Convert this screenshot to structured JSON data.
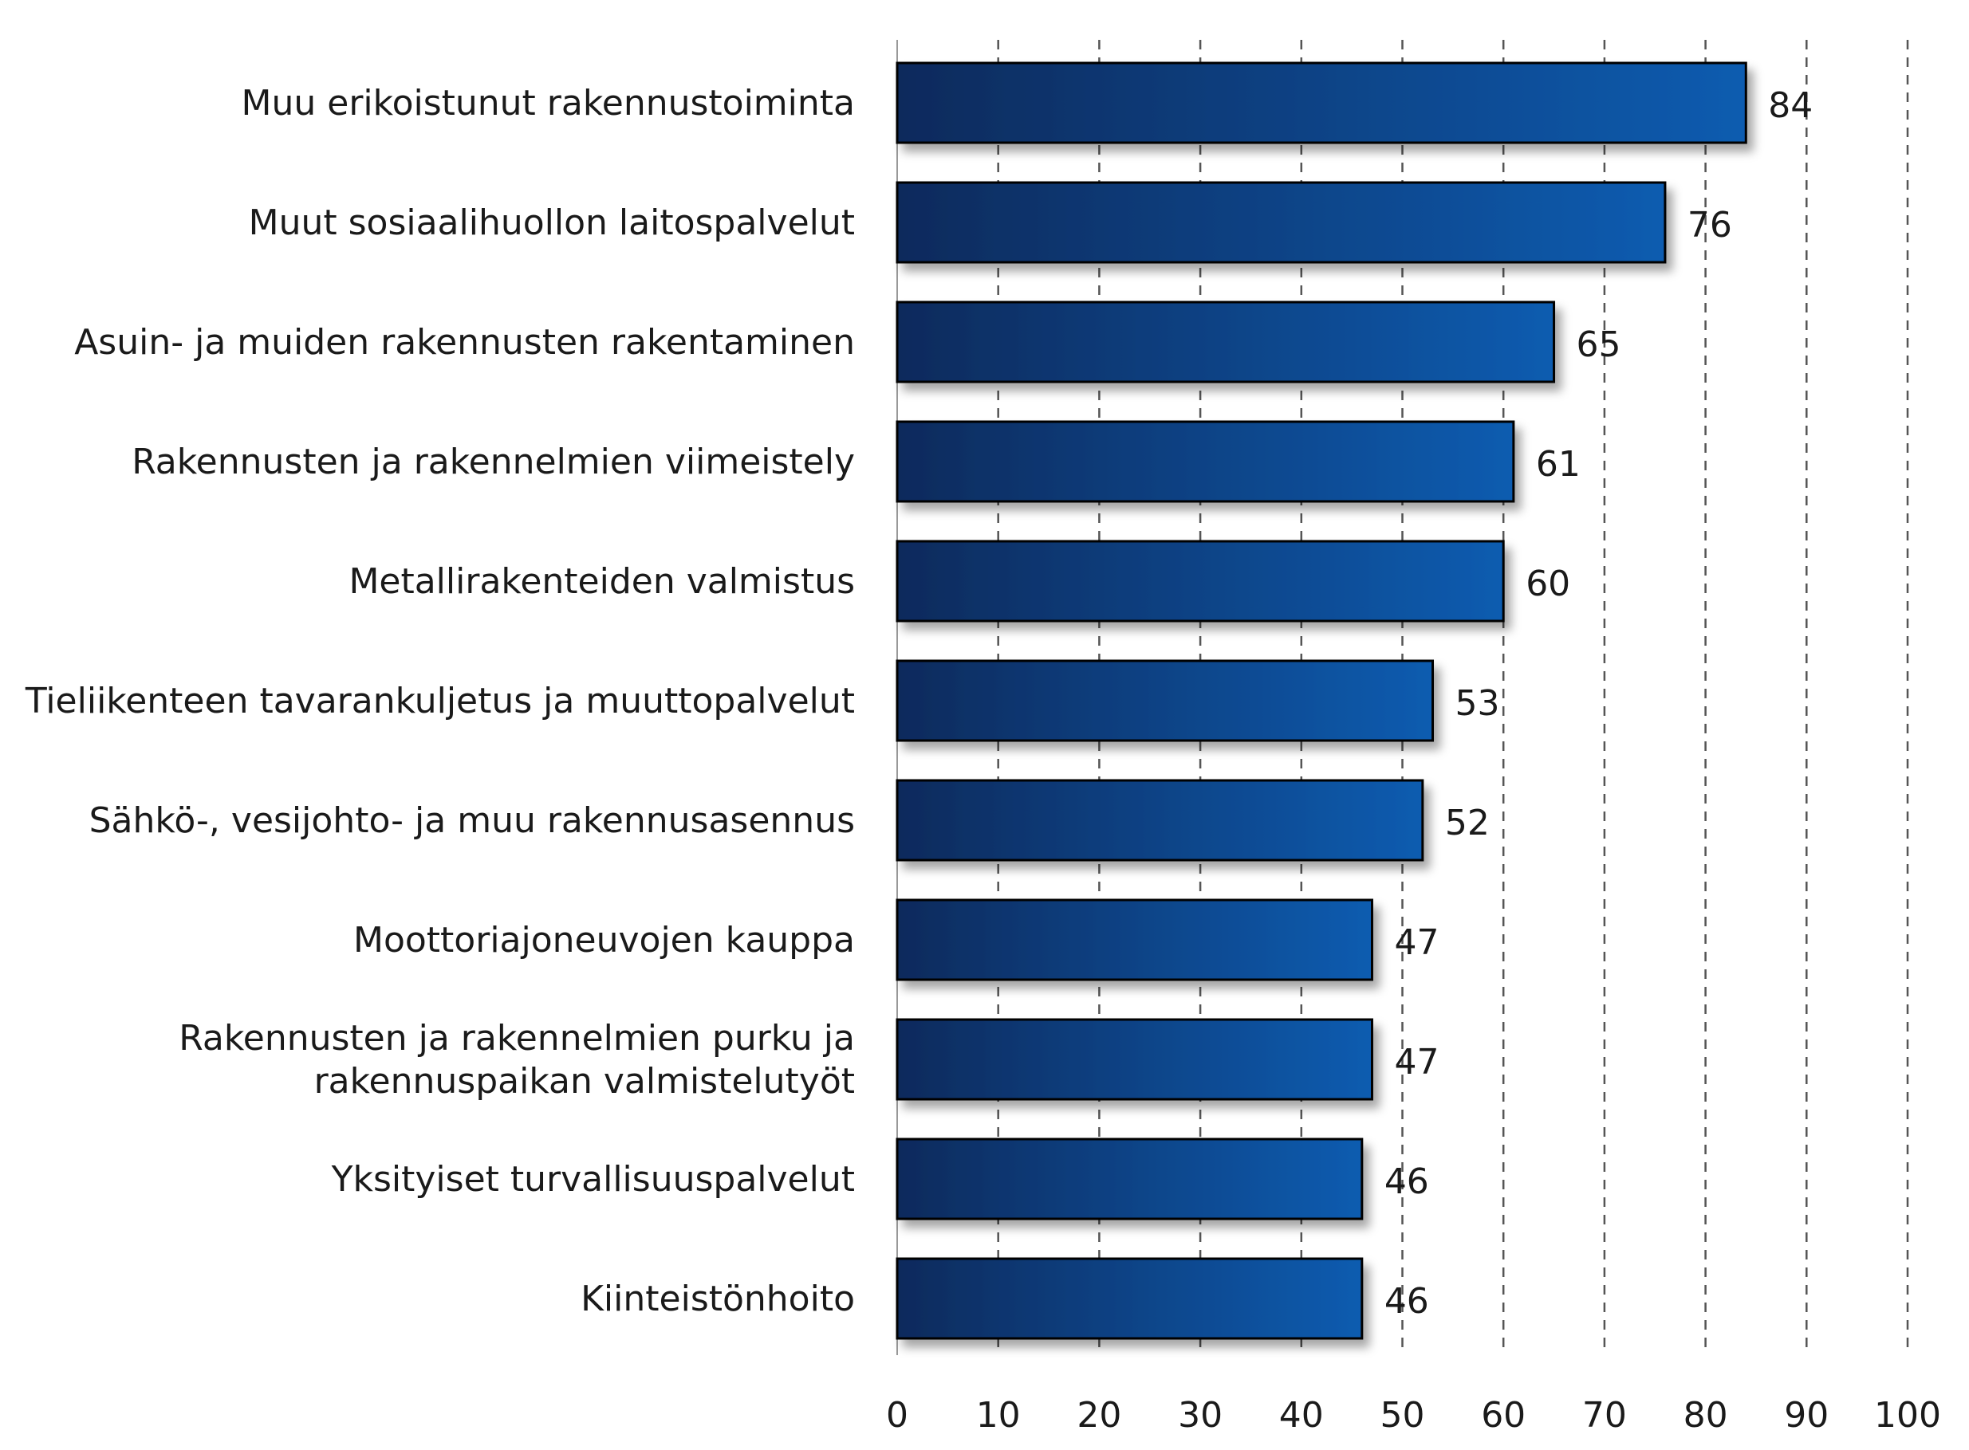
{
  "chart_data": {
    "type": "bar",
    "orientation": "horizontal",
    "categories": [
      [
        "Muu erikoistunut rakennustoiminta"
      ],
      [
        "Muut sosiaalihuollon laitospalvelut"
      ],
      [
        "Asuin- ja muiden rakennusten rakentaminen"
      ],
      [
        "Rakennusten ja rakennelmien viimeistely"
      ],
      [
        "Metallirakenteiden valmistus"
      ],
      [
        "Tieliikenteen tavarankuljetus ja muuttopalvelut"
      ],
      [
        "Sähkö-, vesijohto- ja muu rakennusasennus"
      ],
      [
        "Moottoriajoneuvojen kauppa"
      ],
      [
        "Rakennusten ja rakennelmien purku ja",
        "rakennuspaikan valmistelutyöt"
      ],
      [
        "Yksityiset turvallisuuspalvelut"
      ],
      [
        "Kiinteistönhoito"
      ]
    ],
    "values": [
      84,
      76,
      65,
      61,
      60,
      53,
      52,
      47,
      47,
      46,
      46
    ],
    "value_labels": [
      "84",
      "76",
      "65",
      "61",
      "60",
      "53",
      "52",
      "47",
      "47",
      "46",
      "46"
    ],
    "xlim": [
      0,
      100
    ],
    "xticks": [
      0,
      10,
      20,
      30,
      40,
      50,
      60,
      70,
      80,
      90,
      100
    ],
    "xtick_labels": [
      "0",
      "10",
      "20",
      "30",
      "40",
      "50",
      "60",
      "70",
      "80",
      "90",
      "100"
    ],
    "grid": "vertical dashed",
    "legend": "none",
    "colors": {
      "bar_gradient_start": "#0a2a5c",
      "bar_gradient_end": "#0e5cb0",
      "bar_border": "#000000",
      "grid": "#555555",
      "text": "#1a1a1a"
    }
  }
}
